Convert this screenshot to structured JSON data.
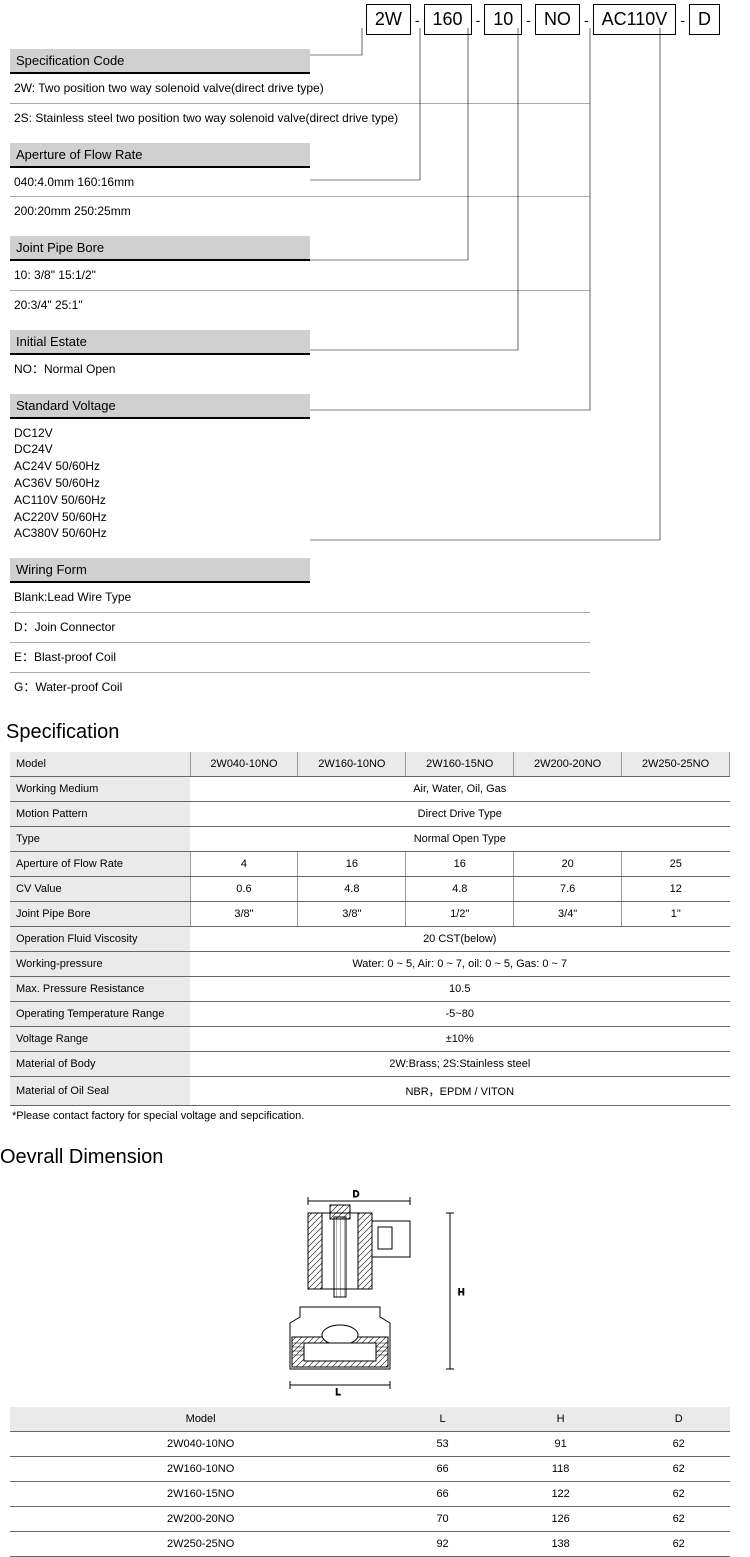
{
  "code_parts": [
    "2W",
    "160",
    "10",
    "NO",
    "AC110V",
    "D"
  ],
  "sections": [
    {
      "header": "Specification Code",
      "items": [
        "2W: Two position two way solenoid valve(direct drive type)",
        "2S: Stainless steel two position two way solenoid valve(direct drive type)"
      ]
    },
    {
      "header": "Aperture of Flow Rate",
      "items": [
        "040:4.0mm    160:16mm",
        "200:20mm    250:25mm"
      ]
    },
    {
      "header": "Joint Pipe Bore",
      "items": [
        "10: 3/8\"   15:1/2\"",
        "20:3/4\"    25:1\""
      ]
    },
    {
      "header": "Initial Estate",
      "items": [
        "NO：Normal Open"
      ]
    },
    {
      "header": "Standard Voltage",
      "items": [
        "DC12V\nDC24V\nAC24V  50/60Hz\nAC36V  50/60Hz\nAC110V  50/60Hz\nAC220V  50/60Hz\nAC380V  50/60Hz"
      ]
    },
    {
      "header": "Wiring Form",
      "items": [
        "Blank:Lead Wire Type",
        "D：Join Connector",
        "E：Blast-proof Coil",
        "G：Water-proof Coil"
      ]
    }
  ],
  "spec_title": "Specification",
  "spec_cols": [
    "Model",
    "2W040-10NO",
    "2W160-10NO",
    "2W160-15NO",
    "2W200-20NO",
    "2W250-25NO"
  ],
  "spec_rows": [
    {
      "label": "Working Medium",
      "span": "Air, Water, Oil, Gas"
    },
    {
      "label": "Motion Pattern",
      "span": "Direct  Drive Type"
    },
    {
      "label": "Type",
      "span": "Normal Open Type"
    },
    {
      "label": "Aperture of Flow Rate",
      "cells": [
        "4",
        "16",
        "16",
        "20",
        "25"
      ]
    },
    {
      "label": "CV  Value",
      "cells": [
        "0.6",
        "4.8",
        "4.8",
        "7.6",
        "12"
      ]
    },
    {
      "label": "Joint Pipe Bore",
      "cells": [
        "3/8\"",
        "3/8\"",
        "1/2\"",
        "3/4\"",
        "1\""
      ]
    },
    {
      "label": "Operation Fluid Viscosity",
      "span": "20  CST(below)"
    },
    {
      "label": "Working-pressure",
      "span": "Water: 0 ~ 5, Air: 0 ~ 7, oil: 0 ~ 5, Gas: 0 ~ 7"
    },
    {
      "label": "Max. Pressure Resistance",
      "span": "10.5"
    },
    {
      "label": "Operating Temperature Range",
      "span": "-5~80"
    },
    {
      "label": "Voltage Range",
      "span": "±10%"
    },
    {
      "label": "Material of Body",
      "span": "2W:Brass;   2S:Stainless steel"
    },
    {
      "label": "Material of Oil Seal",
      "span": "NBR，EPDM / VITON"
    }
  ],
  "spec_note": "*Please contact factory for special voltage and sepcification.",
  "dim_title": "Oevrall Dimension",
  "dim_cols": [
    "Model",
    "L",
    "H",
    "D"
  ],
  "dim_rows": [
    [
      "2W040-10NO",
      "53",
      "91",
      "62"
    ],
    [
      "2W160-10NO",
      "66",
      "118",
      "62"
    ],
    [
      "2W160-15NO",
      "66",
      "122",
      "62"
    ],
    [
      "2W200-20NO",
      "70",
      "126",
      "62"
    ],
    [
      "2W250-25NO",
      "92",
      "138",
      "62"
    ]
  ],
  "diagram_labels": {
    "top": "D",
    "right": "H",
    "bottom": "L"
  }
}
